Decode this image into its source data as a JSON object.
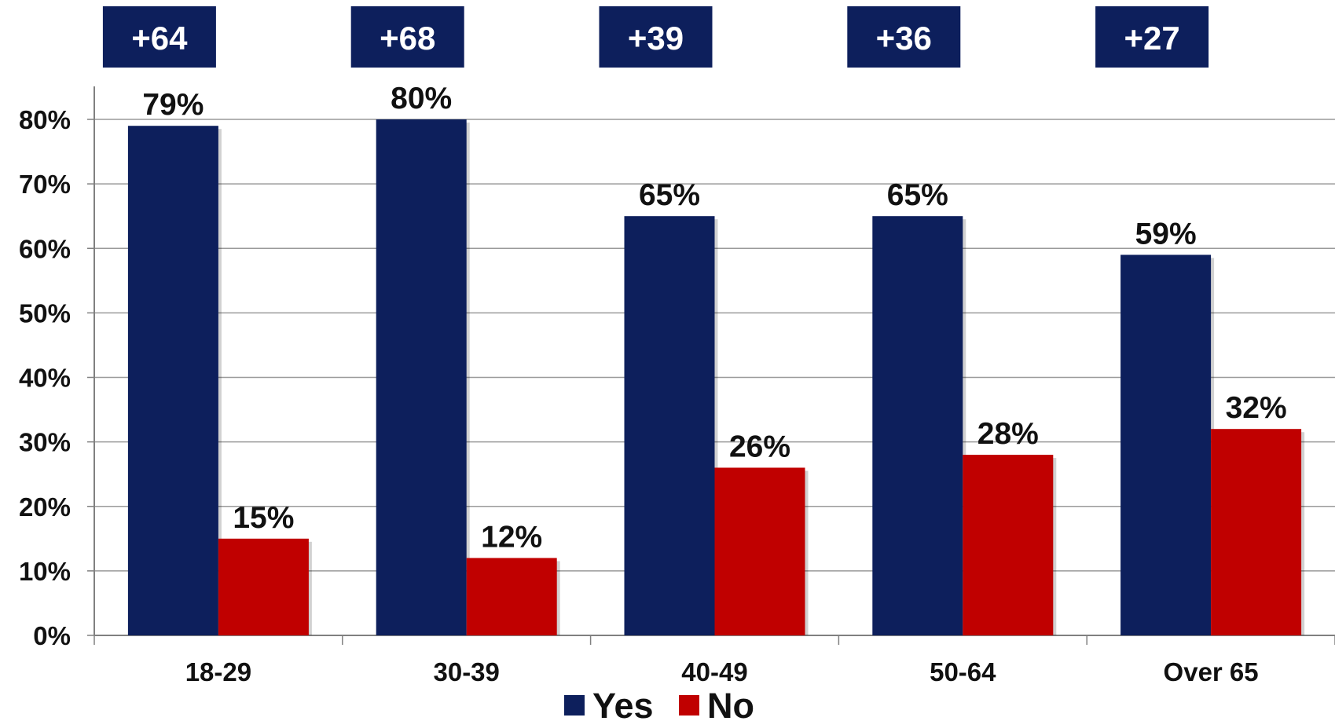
{
  "chart_data": {
    "type": "bar",
    "categories": [
      "18-29",
      "30-39",
      "40-49",
      "50-64",
      "Over 65"
    ],
    "series": [
      {
        "name": "Yes",
        "values": [
          79,
          80,
          65,
          65,
          59
        ],
        "color": "#0d1f5c"
      },
      {
        "name": "No",
        "values": [
          15,
          12,
          26,
          28,
          32
        ],
        "color": "#c00000"
      }
    ],
    "data_labels": {
      "Yes": [
        "79%",
        "80%",
        "65%",
        "65%",
        "59%"
      ],
      "No": [
        "15%",
        "12%",
        "26%",
        "28%",
        "32%"
      ]
    },
    "differences": [
      "+64",
      "+68",
      "+39",
      "+36",
      "+27"
    ],
    "difference_box_color": "#0d1f5c",
    "ylim": [
      0,
      80
    ],
    "yticks": [
      0,
      10,
      20,
      30,
      40,
      50,
      60,
      70,
      80
    ],
    "ytick_labels": [
      "0%",
      "10%",
      "20%",
      "30%",
      "40%",
      "50%",
      "60%",
      "70%",
      "80%"
    ],
    "grid": true,
    "legend_position": "bottom-center"
  }
}
